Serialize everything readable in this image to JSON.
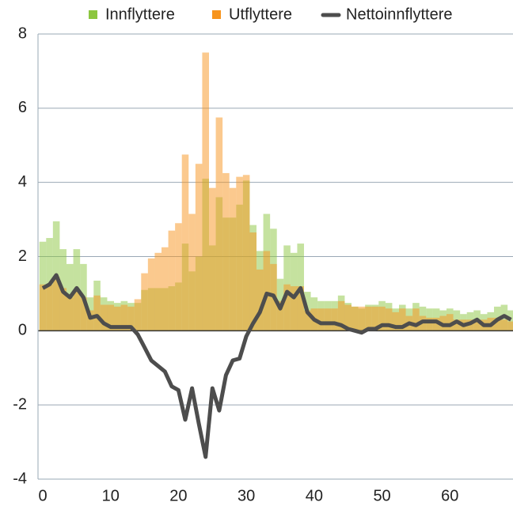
{
  "chart_data": {
    "type": "bar_line",
    "x": [
      0,
      1,
      2,
      3,
      4,
      5,
      6,
      7,
      8,
      9,
      10,
      11,
      12,
      13,
      14,
      15,
      16,
      17,
      18,
      19,
      20,
      21,
      22,
      23,
      24,
      25,
      26,
      27,
      28,
      29,
      30,
      31,
      32,
      33,
      34,
      35,
      36,
      37,
      38,
      39,
      40,
      41,
      42,
      43,
      44,
      45,
      46,
      47,
      48,
      49,
      50,
      51,
      52,
      53,
      54,
      55,
      56,
      57,
      58,
      59,
      60,
      61,
      62,
      63,
      64,
      65,
      66,
      67,
      68,
      69
    ],
    "series": [
      {
        "name": "Innflyttere",
        "color": "#8cc63f",
        "kind": "bar",
        "values": [
          2.4,
          2.5,
          2.95,
          2.2,
          1.8,
          2.2,
          1.8,
          0.9,
          1.35,
          0.9,
          0.8,
          0.75,
          0.8,
          0.75,
          0.75,
          1.1,
          1.15,
          1.15,
          1.15,
          1.2,
          1.3,
          2.35,
          1.6,
          2.0,
          4.1,
          2.3,
          3.6,
          3.05,
          3.05,
          3.4,
          4.05,
          2.85,
          2.15,
          3.15,
          2.75,
          1.4,
          2.3,
          2.1,
          2.35,
          1.05,
          0.9,
          0.8,
          0.8,
          0.8,
          0.95,
          0.75,
          0.65,
          0.6,
          0.7,
          0.7,
          0.8,
          0.75,
          0.6,
          0.7,
          0.6,
          0.75,
          0.65,
          0.6,
          0.6,
          0.55,
          0.6,
          0.55,
          0.45,
          0.5,
          0.55,
          0.45,
          0.5,
          0.65,
          0.7,
          0.55
        ]
      },
      {
        "name": "Utflyttere",
        "color": "#f7941d",
        "kind": "bar",
        "values": [
          1.25,
          1.25,
          1.45,
          1.15,
          0.9,
          1.05,
          0.9,
          0.55,
          0.95,
          0.7,
          0.7,
          0.65,
          0.7,
          0.65,
          0.85,
          1.55,
          1.95,
          2.1,
          2.25,
          2.7,
          2.9,
          4.75,
          3.15,
          4.5,
          7.5,
          3.85,
          5.75,
          4.25,
          3.85,
          4.15,
          4.2,
          2.65,
          1.65,
          2.15,
          1.8,
          0.8,
          1.25,
          1.2,
          1.2,
          0.55,
          0.6,
          0.6,
          0.6,
          0.6,
          0.8,
          0.7,
          0.65,
          0.65,
          0.65,
          0.65,
          0.65,
          0.6,
          0.5,
          0.6,
          0.4,
          0.6,
          0.4,
          0.35,
          0.35,
          0.4,
          0.45,
          0.3,
          0.3,
          0.3,
          0.25,
          0.3,
          0.35,
          0.35,
          0.3,
          0.25
        ]
      },
      {
        "name": "Nettoinnflyttere",
        "color": "#4d4d4d",
        "kind": "line",
        "values": [
          1.15,
          1.25,
          1.5,
          1.05,
          0.9,
          1.15,
          0.9,
          0.35,
          0.4,
          0.2,
          0.1,
          0.1,
          0.1,
          0.1,
          -0.1,
          -0.45,
          -0.8,
          -0.95,
          -1.1,
          -1.5,
          -1.6,
          -2.4,
          -1.55,
          -2.5,
          -3.4,
          -1.55,
          -2.15,
          -1.2,
          -0.8,
          -0.75,
          -0.15,
          0.2,
          0.5,
          1.0,
          0.95,
          0.6,
          1.05,
          0.9,
          1.15,
          0.5,
          0.3,
          0.2,
          0.2,
          0.2,
          0.15,
          0.05,
          0.0,
          -0.05,
          0.05,
          0.05,
          0.15,
          0.15,
          0.1,
          0.1,
          0.2,
          0.15,
          0.25,
          0.25,
          0.25,
          0.15,
          0.15,
          0.25,
          0.15,
          0.2,
          0.3,
          0.15,
          0.15,
          0.3,
          0.4,
          0.3
        ]
      }
    ],
    "xlim": [
      -0.7,
      69.3
    ],
    "xticks": [
      0,
      10,
      20,
      30,
      40,
      50,
      60
    ],
    "ylim": [
      -4,
      8
    ],
    "yticks": [
      -4,
      -2,
      0,
      2,
      4,
      6,
      8
    ],
    "grid": true,
    "legend": "top"
  }
}
